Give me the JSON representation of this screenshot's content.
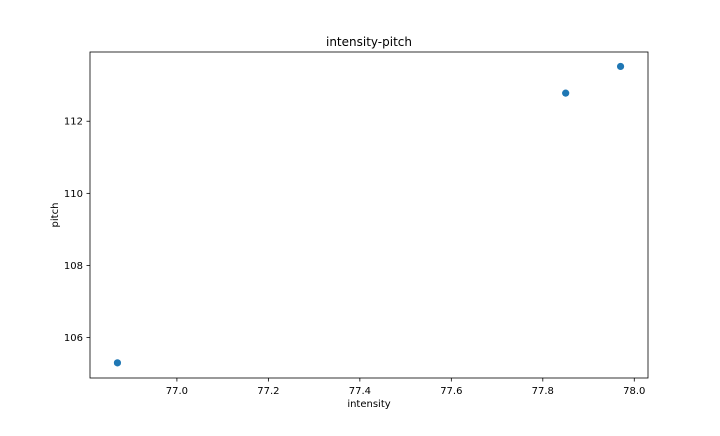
{
  "chart_data": {
    "type": "scatter",
    "title": "intensity-pitch",
    "xlabel": "intensity",
    "ylabel": "pitch",
    "xlim": [
      76.81,
      78.03
    ],
    "ylim": [
      104.88,
      113.92
    ],
    "xticks": [
      77.0,
      77.2,
      77.4,
      77.6,
      77.8,
      78.0
    ],
    "xtick_labels": [
      "77.0",
      "77.2",
      "77.4",
      "77.6",
      "77.8",
      "78.0"
    ],
    "yticks": [
      106,
      108,
      110,
      112
    ],
    "ytick_labels": [
      "106",
      "108",
      "110",
      "112"
    ],
    "grid": false,
    "points": [
      {
        "x": 76.87,
        "y": 105.3
      },
      {
        "x": 77.85,
        "y": 112.78
      },
      {
        "x": 77.97,
        "y": 113.52
      }
    ],
    "marker_color": "#1f77b4"
  }
}
